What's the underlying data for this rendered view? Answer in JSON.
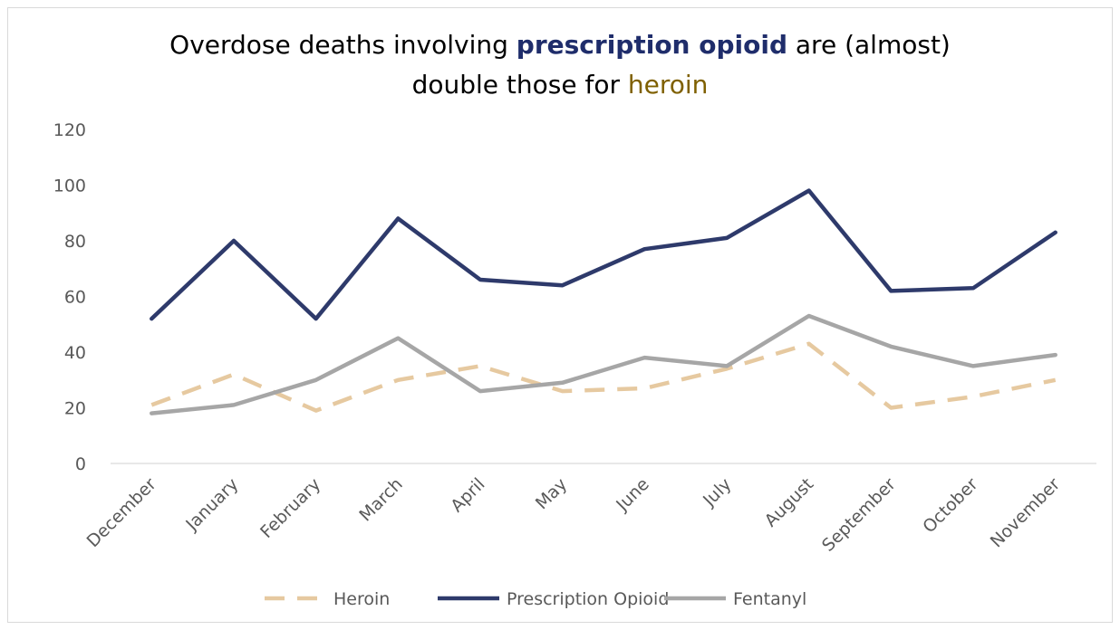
{
  "chart_data": {
    "type": "line",
    "title": {
      "line1_prefix": "Overdose deaths involving ",
      "line1_emphasis": "prescription opioid",
      "line1_suffix": " are (almost)",
      "line2_prefix": "double those for ",
      "line2_emphasis": "heroin",
      "emphasis1_color": "#1f2d6b",
      "emphasis2_color": "#7f6000"
    },
    "categories": [
      "December",
      "January",
      "February",
      "March",
      "April",
      "May",
      "June",
      "July",
      "August",
      "September",
      "October",
      "November"
    ],
    "ylim": [
      0,
      120
    ],
    "yticks": [
      "0",
      "20",
      "40",
      "60",
      "80",
      "100",
      "120"
    ],
    "grid": false,
    "legend_position": "bottom",
    "series": [
      {
        "name": "Heroin",
        "color": "#e6c9a0",
        "dashed": true,
        "values": [
          21,
          32,
          19,
          30,
          35,
          26,
          27,
          34,
          43,
          20,
          24,
          30
        ]
      },
      {
        "name": "Prescription Opioid",
        "color": "#2e3a6b",
        "dashed": false,
        "values": [
          52,
          80,
          52,
          88,
          66,
          64,
          77,
          81,
          98,
          62,
          63,
          83
        ]
      },
      {
        "name": "Fentanyl",
        "color": "#a6a6a6",
        "dashed": false,
        "values": [
          18,
          21,
          30,
          45,
          26,
          29,
          38,
          35,
          53,
          42,
          35,
          39
        ]
      }
    ]
  }
}
